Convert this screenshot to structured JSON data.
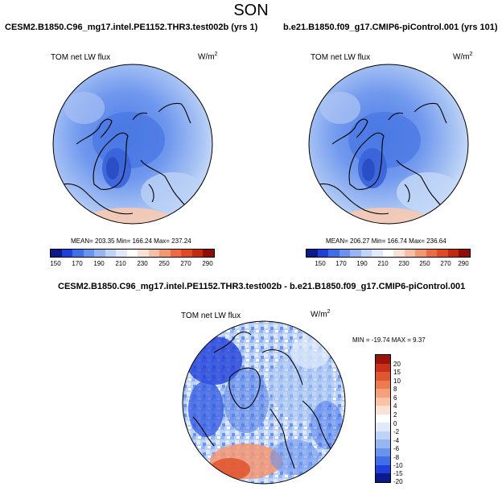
{
  "season": "SON",
  "panels": [
    {
      "case": "CESM2.B1850.C96_mg17.intel.PE1152.THR3.test002b (yrs 1)",
      "variable": "TOM net LW flux",
      "units_base": "W/m",
      "units_exp": "2",
      "stats": "MEAN= 203.35  Min= 166.24  Max= 237.24"
    },
    {
      "case": "b.e21.B1850.f09_g17.CMIP6-piControl.001 (yrs 101)",
      "variable": "TOM net LW flux",
      "units_base": "W/m",
      "units_exp": "2",
      "stats": "MEAN= 206.27  Min= 166.74  Max= 236.64"
    }
  ],
  "diff": {
    "title": "CESM2.B1850.C96_mg17.intel.PE1152.THR3.test002b - b.e21.B1850.f09_g17.CMIP6-piControl.001",
    "variable": "TOM net LW flux",
    "units_base": "W/m",
    "units_exp": "2",
    "stats": "MIN = -19.74 MAX =   9.37"
  },
  "colorbar_abs": {
    "labels": [
      "150",
      "170",
      "190",
      "210",
      "230",
      "250",
      "270",
      "290"
    ],
    "colors": [
      "#0a1a8c",
      "#1f3fd8",
      "#3f6fe8",
      "#6a93ee",
      "#95b6f2",
      "#bed3f7",
      "#dfe9fb",
      "#ffffff",
      "#fbe1d4",
      "#f7bfa3",
      "#f39672",
      "#ee6a45",
      "#e04a22",
      "#c22a10",
      "#8f0d05"
    ]
  },
  "colorbar_diff": {
    "labels": [
      "20",
      "15",
      "10",
      "8",
      "6",
      "4",
      "2",
      "0",
      "-2",
      "-4",
      "-6",
      "-8",
      "-10",
      "-15",
      "-20"
    ],
    "colors": [
      "#9a1208",
      "#c9301a",
      "#e0562e",
      "#ee7b4f",
      "#f4a07a",
      "#f8c3a6",
      "#fbe1d4",
      "#ffffff",
      "#dfe9fb",
      "#bed3f7",
      "#95b6f2",
      "#6a93ee",
      "#3f6fe8",
      "#1f3fd8",
      "#0a1a8c"
    ]
  }
}
